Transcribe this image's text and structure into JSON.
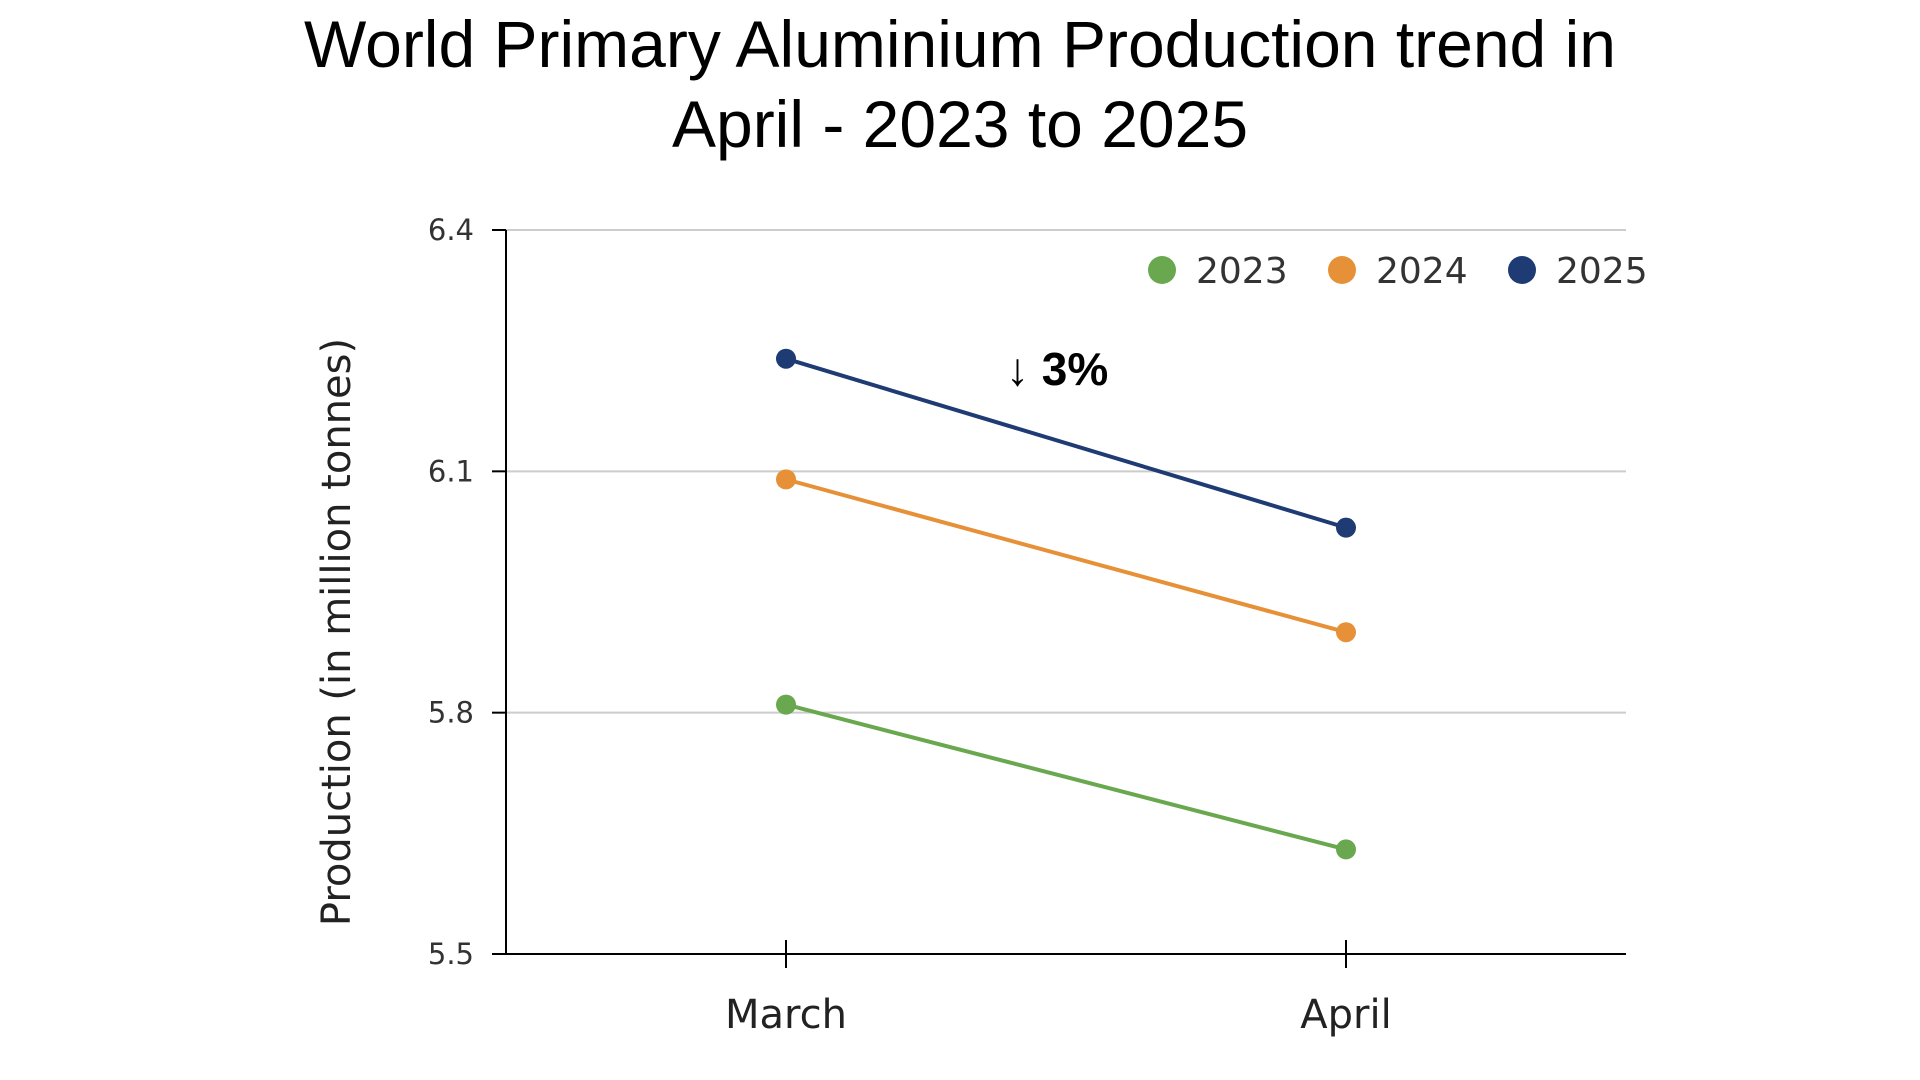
{
  "chart_data": {
    "type": "line",
    "title_lines": [
      "World Primary Aluminium Production trend in",
      "April - 2023 to 2025"
    ],
    "xlabel": "",
    "ylabel": "Production (in million tonnes)",
    "categories": [
      "March",
      "April"
    ],
    "ylim": [
      5.5,
      6.4
    ],
    "yticks": [
      5.5,
      5.8,
      6.1,
      6.4
    ],
    "grid": true,
    "legend_position": "top-right",
    "series": [
      {
        "name": "2023",
        "color": "#6aa84f",
        "values": [
          5.81,
          5.63
        ]
      },
      {
        "name": "2024",
        "color": "#e69138",
        "values": [
          6.09,
          5.9
        ]
      },
      {
        "name": "2025",
        "color": "#1f3b73",
        "values": [
          6.24,
          6.03
        ]
      }
    ],
    "annotations": [
      {
        "text": "↓ 3%",
        "x_between": [
          0,
          1
        ],
        "y": 6.22
      }
    ]
  }
}
